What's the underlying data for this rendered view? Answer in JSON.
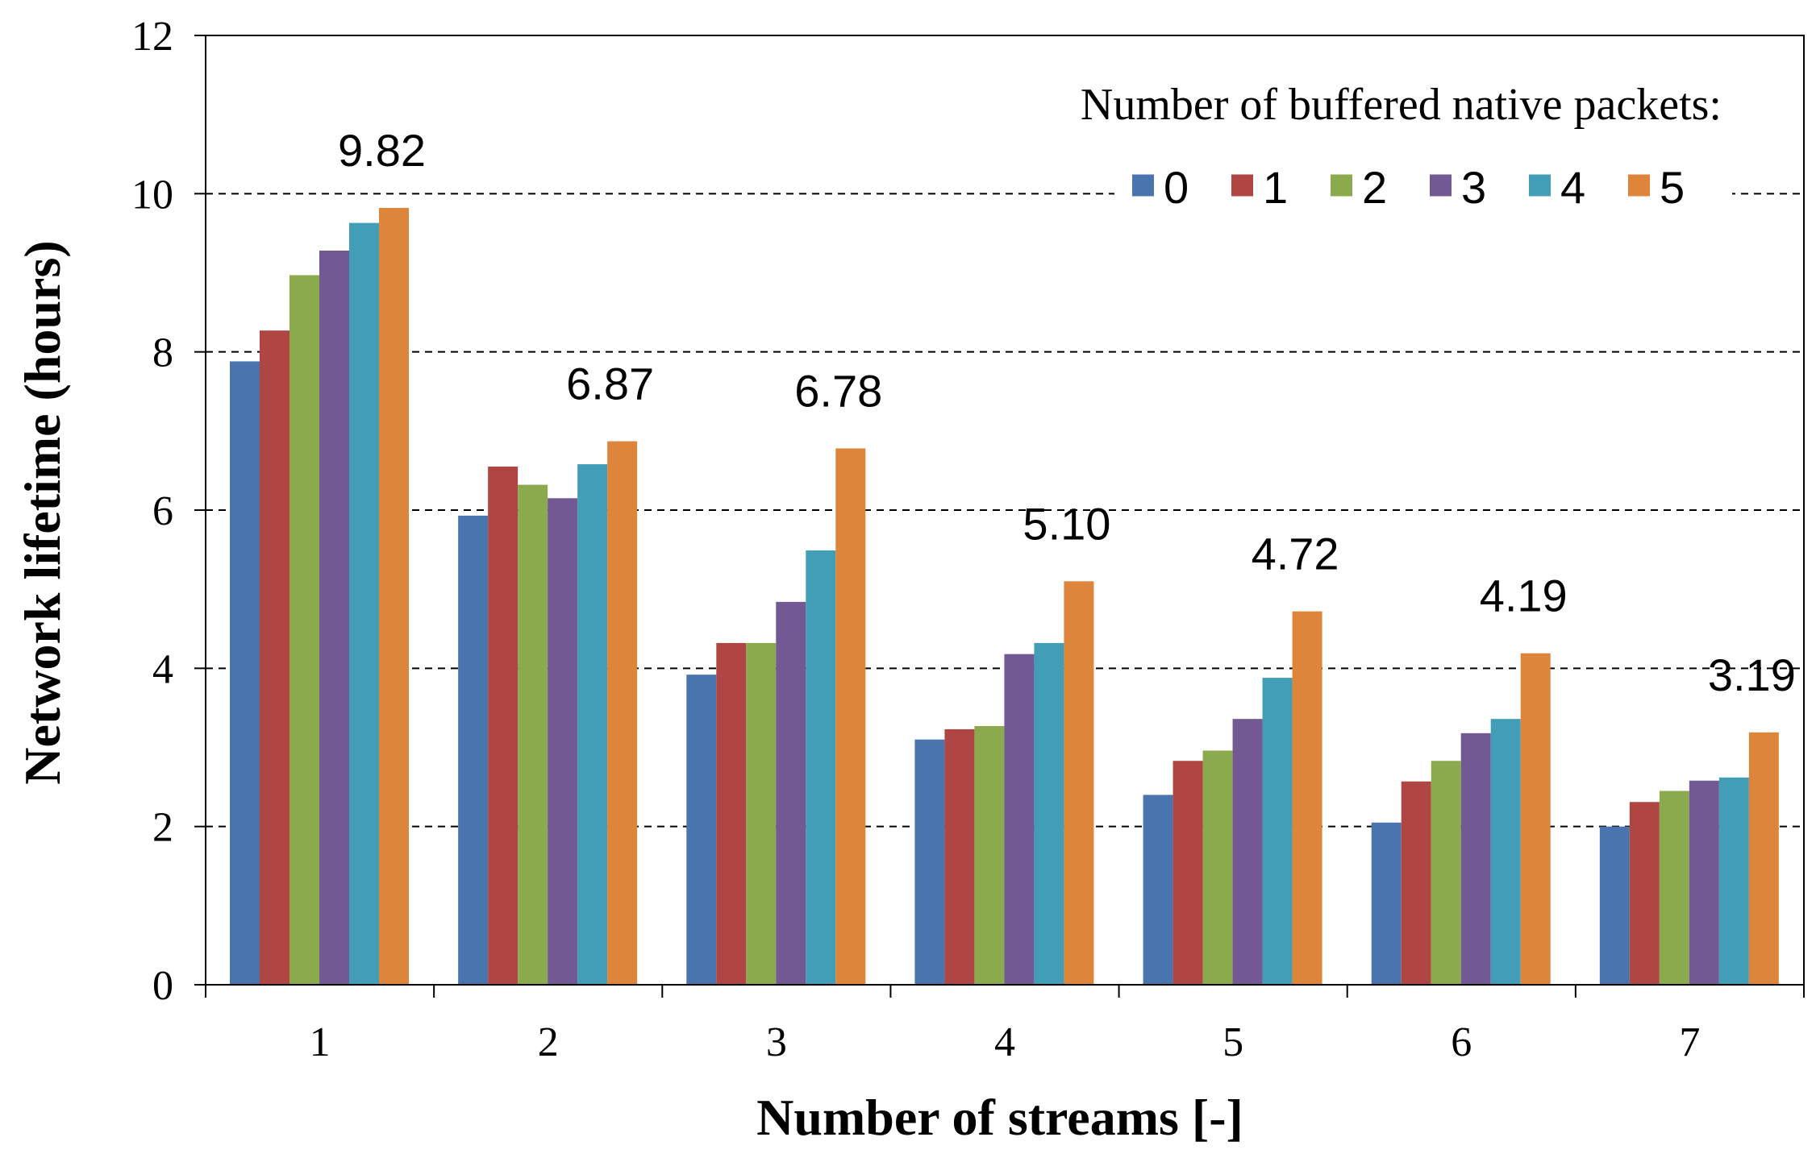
{
  "chart_data": {
    "type": "bar",
    "title": "",
    "xlabel": "Number of streams [-]",
    "ylabel": "Network lifetime (hours)",
    "ylim": [
      0,
      12
    ],
    "yticks": [
      0,
      2,
      4,
      6,
      8,
      10,
      12
    ],
    "grid": "horizontal dashed",
    "categories": [
      "1",
      "2",
      "3",
      "4",
      "5",
      "6",
      "7"
    ],
    "legend": {
      "title": "Number of buffered native packets:",
      "placement": "top-right"
    },
    "series": [
      {
        "name": "0",
        "color": "#4A74AE",
        "values": [
          7.88,
          5.93,
          3.92,
          3.1,
          2.4,
          2.05,
          2.0
        ]
      },
      {
        "name": "1",
        "color": "#B04644",
        "values": [
          8.27,
          6.55,
          4.32,
          3.23,
          2.83,
          2.57,
          2.31
        ]
      },
      {
        "name": "2",
        "color": "#8AAA4D",
        "values": [
          8.97,
          6.32,
          4.32,
          3.27,
          2.96,
          2.83,
          2.45
        ]
      },
      {
        "name": "3",
        "color": "#735994",
        "values": [
          9.28,
          6.15,
          4.84,
          4.18,
          3.36,
          3.18,
          2.58
        ]
      },
      {
        "name": "4",
        "color": "#429DB6",
        "values": [
          9.63,
          6.58,
          5.49,
          4.32,
          3.88,
          3.36,
          2.62
        ]
      },
      {
        "name": "5",
        "color": "#DE853C",
        "values": [
          9.82,
          6.87,
          6.78,
          5.1,
          4.72,
          4.19,
          3.19
        ]
      }
    ],
    "annotations": [
      "9.82",
      "6.87",
      "6.78",
      "5.10",
      "4.72",
      "4.19",
      "3.19"
    ]
  }
}
